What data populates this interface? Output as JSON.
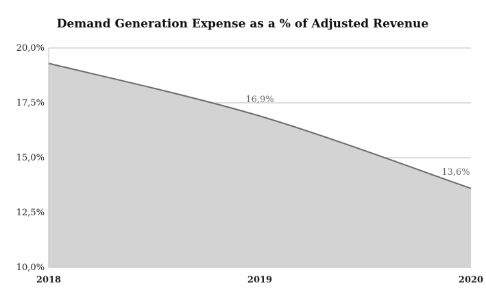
{
  "chart_data": {
    "type": "area",
    "title": "Demand Generation Expense as a % of Adjusted Revenue",
    "xlabel": "",
    "ylabel": "",
    "categories": [
      "2018",
      "2019",
      "2020"
    ],
    "series": [
      {
        "values": [
          19.3,
          16.9,
          13.6
        ]
      }
    ],
    "data_labels": [
      "",
      "16,9%",
      "13,6%"
    ],
    "ylim": [
      10.0,
      20.0
    ],
    "yticks": [
      {
        "value": 20.0,
        "label": "20,0%"
      },
      {
        "value": 17.5,
        "label": "17,5%"
      },
      {
        "value": 15.0,
        "label": "15,0%"
      },
      {
        "value": 12.5,
        "label": "12,5%"
      },
      {
        "value": 10.0,
        "label": "10,0%"
      }
    ],
    "grid": true,
    "legend": "none",
    "colors": {
      "fill": "#d3d3d3",
      "line": "#6b6b6b"
    }
  }
}
